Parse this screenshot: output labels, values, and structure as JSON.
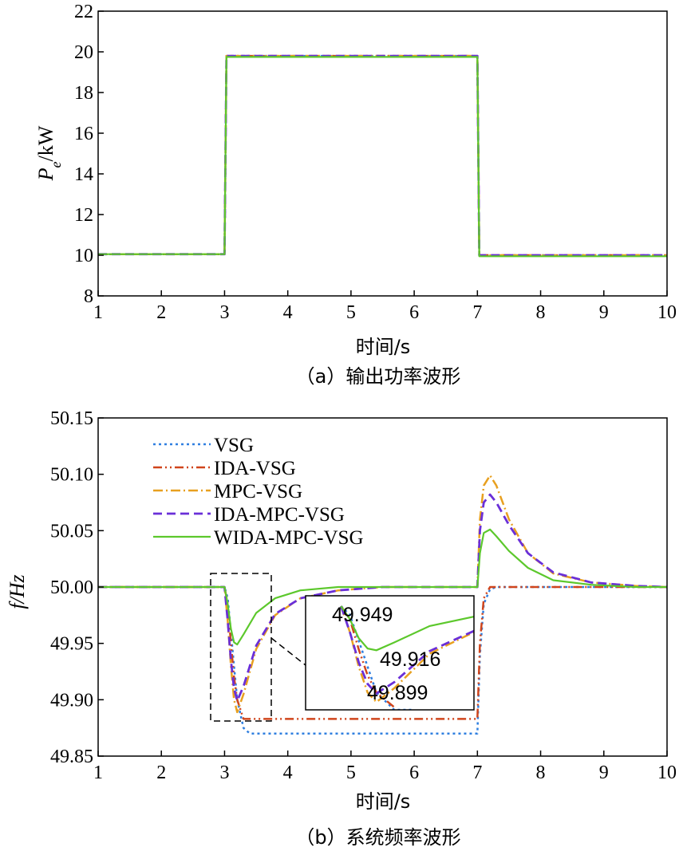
{
  "chart_data": [
    {
      "type": "line",
      "id": "a",
      "caption": "（a）输出功率波形",
      "xlabel": "时间/s",
      "ylabel_main": "P",
      "ylabel_sub": "e",
      "ylabel_rest": "/kW",
      "xlim": [
        1,
        10
      ],
      "ylim": [
        8,
        22
      ],
      "xticks": [
        "1",
        "2",
        "3",
        "4",
        "5",
        "6",
        "7",
        "8",
        "9",
        "10"
      ],
      "yticks": [
        "8",
        "10",
        "12",
        "14",
        "16",
        "18",
        "20",
        "22"
      ],
      "series": [
        {
          "name": "VSG",
          "x": [
            1,
            3,
            3.03,
            7,
            7.03,
            10
          ],
          "y": [
            10.05,
            10.05,
            19.8,
            19.8,
            10.0,
            10.0
          ]
        },
        {
          "name": "IDA-VSG",
          "x": [
            1,
            3,
            3.03,
            7,
            7.03,
            10
          ],
          "y": [
            10.05,
            10.05,
            19.8,
            19.8,
            10.0,
            10.0
          ]
        },
        {
          "name": "MPC-VSG",
          "x": [
            1,
            3,
            3.03,
            7,
            7.03,
            10
          ],
          "y": [
            10.05,
            10.05,
            19.8,
            19.8,
            10.0,
            10.0
          ]
        },
        {
          "name": "IDA-MPC-VSG",
          "x": [
            1,
            3,
            3.03,
            7,
            7.03,
            10
          ],
          "y": [
            10.05,
            10.05,
            19.8,
            19.8,
            10.0,
            10.0
          ]
        },
        {
          "name": "WIDA-MPC-VSG",
          "x": [
            1,
            3,
            3.03,
            7,
            7.03,
            10
          ],
          "y": [
            10.05,
            10.05,
            19.75,
            19.75,
            9.95,
            9.95
          ]
        }
      ]
    },
    {
      "type": "line",
      "id": "b",
      "caption": "（b）系统频率波形",
      "xlabel": "时间/s",
      "ylabel": "f/Hz",
      "xlim": [
        1,
        10
      ],
      "ylim": [
        49.85,
        50.15
      ],
      "xticks": [
        "1",
        "2",
        "3",
        "4",
        "5",
        "6",
        "7",
        "8",
        "9",
        "10"
      ],
      "yticks": [
        "49.85",
        "49.90",
        "49.95",
        "50.00",
        "50.05",
        "50.10",
        "50.15"
      ],
      "legend": [
        "VSG",
        "IDA-VSG",
        "MPC-VSG",
        "IDA-MPC-VSG",
        "WIDA-MPC-VSG"
      ],
      "series": [
        {
          "name": "VSG",
          "x": [
            1,
            3,
            3.05,
            3.1,
            3.15,
            3.2,
            3.3,
            3.4,
            7,
            7.04,
            7.1,
            7.2,
            7.3,
            10
          ],
          "y": [
            50.0,
            50.0,
            49.99,
            49.96,
            49.93,
            49.9,
            49.875,
            49.87,
            49.87,
            49.94,
            49.985,
            49.998,
            50.0,
            50.0
          ]
        },
        {
          "name": "IDA-VSG",
          "x": [
            1,
            3,
            3.05,
            3.1,
            3.15,
            3.2,
            3.3,
            7,
            7.04,
            7.1,
            7.2,
            10
          ],
          "y": [
            50.0,
            50.0,
            49.985,
            49.95,
            49.92,
            49.9,
            49.883,
            49.883,
            49.95,
            49.99,
            50.0,
            50.0
          ]
        },
        {
          "name": "MPC-VSG",
          "x": [
            1,
            3,
            3.05,
            3.1,
            3.15,
            3.2,
            3.3,
            3.5,
            3.8,
            4.2,
            4.8,
            5.5,
            7,
            7.04,
            7.1,
            7.2,
            7.3,
            7.5,
            7.8,
            8.2,
            8.8,
            9.5,
            10
          ],
          "y": [
            50.0,
            50.0,
            49.97,
            49.93,
            49.9,
            49.889,
            49.905,
            49.945,
            49.975,
            49.99,
            49.997,
            50.0,
            50.0,
            50.06,
            50.09,
            50.099,
            50.09,
            50.06,
            50.03,
            50.012,
            50.004,
            50.001,
            50.0
          ]
        },
        {
          "name": "IDA-MPC-VSG",
          "x": [
            1,
            3,
            3.05,
            3.1,
            3.15,
            3.2,
            3.3,
            3.5,
            3.8,
            4.2,
            4.8,
            5.5,
            7,
            7.04,
            7.1,
            7.2,
            7.3,
            7.5,
            7.8,
            8.2,
            8.8,
            9.5,
            10
          ],
          "y": [
            50.0,
            50.0,
            49.97,
            49.935,
            49.91,
            49.899,
            49.912,
            49.948,
            49.976,
            49.99,
            49.997,
            50.0,
            50.0,
            50.05,
            50.075,
            50.082,
            50.075,
            50.055,
            50.03,
            50.013,
            50.004,
            50.001,
            50.0
          ]
        },
        {
          "name": "WIDA-MPC-VSG",
          "x": [
            1,
            3,
            3.05,
            3.1,
            3.15,
            3.2,
            3.3,
            3.5,
            3.8,
            4.2,
            4.8,
            5.5,
            7,
            7.04,
            7.1,
            7.2,
            7.3,
            7.5,
            7.8,
            8.2,
            8.8,
            9.5,
            10
          ],
          "y": [
            50.0,
            50.0,
            49.985,
            49.963,
            49.951,
            49.949,
            49.958,
            49.977,
            49.99,
            49.997,
            50.0,
            50.0,
            50.0,
            50.03,
            50.048,
            50.051,
            50.045,
            50.032,
            50.017,
            50.006,
            50.002,
            50.0,
            50.0
          ]
        }
      ],
      "inset": {
        "xlim": [
          2.8,
          3.75
        ],
        "ylim": [
          49.88,
          50.012
        ],
        "annotations": [
          "49.949",
          "49.916",
          "49.899"
        ]
      }
    }
  ],
  "colors": {
    "VSG": "#2f7fe0",
    "IDA-VSG": "#d0451c",
    "MPC-VSG": "#e8a020",
    "IDA-MPC-VSG": "#6a2fd8",
    "WIDA-MPC-VSG": "#5cc82c"
  }
}
